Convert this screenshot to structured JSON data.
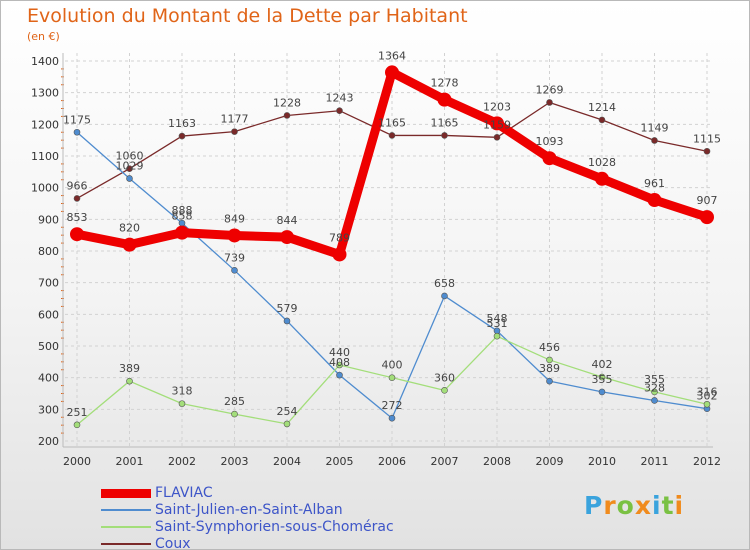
{
  "chart_data": {
    "type": "line",
    "title": "Evolution du Montant de la Dette par Habitant",
    "subtitle": "(en €)",
    "categories": [
      "2000",
      "2001",
      "2002",
      "2003",
      "2004",
      "2005",
      "2006",
      "2007",
      "2008",
      "2009",
      "2010",
      "2011",
      "2012"
    ],
    "ylim": [
      200,
      1400
    ],
    "yticks": [
      "200",
      "300",
      "400",
      "500",
      "600",
      "700",
      "800",
      "900",
      "1000",
      "1100",
      "1200",
      "1300",
      "1400"
    ],
    "grid": true,
    "legend_position": "bottom-left",
    "series": [
      {
        "name": "FLAVIAC",
        "color": "#ee0000",
        "width": 9,
        "marker": 7,
        "values": [
          853,
          820,
          858,
          849,
          844,
          789,
          1364,
          1278,
          1203,
          1093,
          1028,
          961,
          907
        ],
        "labels": [
          "853",
          "820",
          "858",
          "849",
          "844",
          "789",
          "1364",
          "1278",
          "1203",
          "1093",
          "1028",
          "961",
          "907"
        ]
      },
      {
        "name": "Saint-Julien-en-Saint-Alban",
        "color": "#4f8ccf",
        "width": 1.3,
        "marker": 3,
        "values": [
          1175,
          1029,
          888,
          739,
          579,
          408,
          272,
          658,
          548,
          389,
          355,
          328,
          302
        ],
        "labels": [
          "1175",
          "1029",
          "888",
          "739",
          "579",
          "408",
          "272",
          "658",
          "548",
          "389",
          "355",
          "328",
          "302"
        ]
      },
      {
        "name": "Saint-Symphorien-sous-Chomérac",
        "color": "#a3de7a",
        "width": 1.3,
        "marker": 3,
        "values": [
          251,
          389,
          318,
          285,
          254,
          440,
          400,
          360,
          531,
          456,
          402,
          355,
          316
        ],
        "labels": [
          "251",
          "389",
          "318",
          "285",
          "254",
          "440",
          "400",
          "360",
          "531",
          "456",
          "402",
          "355",
          "316"
        ]
      },
      {
        "name": "Coux",
        "color": "#7a2a2a",
        "width": 1.3,
        "marker": 3,
        "values": [
          966,
          1060,
          1163,
          1177,
          1228,
          1243,
          1165,
          1165,
          1159,
          1269,
          1214,
          1149,
          1115
        ],
        "labels": [
          "966",
          "1060",
          "1163",
          "1177",
          "1228",
          "1243",
          "1165",
          "1165",
          "1159",
          "1269",
          "1214",
          "1149",
          "1115"
        ]
      }
    ]
  },
  "logo": {
    "letters": [
      "P",
      "r",
      "o",
      "x",
      "i",
      "t",
      "i"
    ],
    "colors": [
      "#3aa3dd",
      "#f08b1d",
      "#7ac143",
      "#f08b1d",
      "#3aa3dd",
      "#7ac143",
      "#f08b1d"
    ]
  }
}
